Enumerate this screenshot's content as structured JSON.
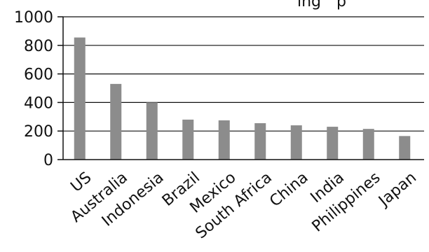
{
  "chart_data": {
    "type": "bar",
    "title_fragment": "ing",
    "title_fragment_2": "p",
    "categories": [
      "US",
      "Australia",
      "Indonesia",
      "Brazil",
      "Mexico",
      "South Africa",
      "China",
      "India",
      "Philippines",
      "Japan"
    ],
    "values": [
      855,
      530,
      400,
      280,
      275,
      255,
      240,
      230,
      215,
      165
    ],
    "ylim": [
      0,
      1000
    ],
    "yticks": [
      0,
      200,
      400,
      600,
      800,
      1000
    ],
    "grid": true,
    "bar_color": "#8c8c8c",
    "grid_color": "#111111"
  }
}
